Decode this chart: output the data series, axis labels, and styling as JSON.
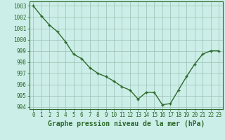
{
  "x": [
    0,
    1,
    2,
    3,
    4,
    5,
    6,
    7,
    8,
    9,
    10,
    11,
    12,
    13,
    14,
    15,
    16,
    17,
    18,
    19,
    20,
    21,
    22,
    23
  ],
  "y": [
    1003.0,
    1002.1,
    1001.3,
    1000.7,
    999.8,
    998.7,
    998.3,
    997.5,
    997.0,
    996.7,
    996.3,
    995.8,
    995.5,
    994.7,
    995.3,
    995.3,
    994.2,
    994.3,
    995.5,
    996.7,
    997.8,
    998.7,
    999.0,
    999.0
  ],
  "line_color": "#2d6a2d",
  "marker_color": "#2d6a2d",
  "bg_color": "#cceee8",
  "grid_color": "#9abfb0",
  "xlabel": "Graphe pression niveau de la mer (hPa)",
  "ylim": [
    993.8,
    1003.4
  ],
  "xlim": [
    -0.5,
    23.5
  ],
  "yticks": [
    994,
    995,
    996,
    997,
    998,
    999,
    1000,
    1001,
    1002,
    1003
  ],
  "xticks": [
    0,
    1,
    2,
    3,
    4,
    5,
    6,
    7,
    8,
    9,
    10,
    11,
    12,
    13,
    14,
    15,
    16,
    17,
    18,
    19,
    20,
    21,
    22,
    23
  ],
  "tick_fontsize": 5.5,
  "xlabel_fontsize": 7.0,
  "line_width": 1.0,
  "marker_size": 2.5
}
